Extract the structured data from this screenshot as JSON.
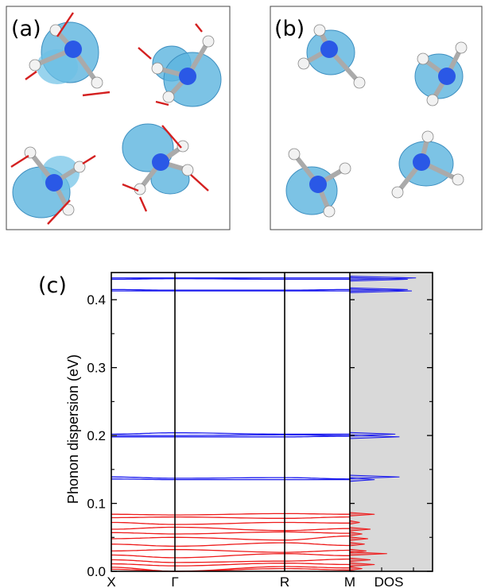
{
  "panels": {
    "a": {
      "label": "(a)"
    },
    "b": {
      "label": "(b)"
    },
    "c": {
      "label": "(c)"
    }
  },
  "colors": {
    "high_freq": "#1a1aee",
    "low_freq": "#ee1a1a",
    "dos_fill": "#d9d9d9",
    "orbital": "#5bb4de",
    "nitrogen": "#2a58e6",
    "hydrogen": "#f2f2f2",
    "arrow": "#d42020"
  },
  "chart_data": {
    "type": "line",
    "title": "",
    "xlabel": "",
    "ylabel": "Phonon dispersion (eV)",
    "ylim": [
      0,
      0.44
    ],
    "yticks": [
      "0.0",
      "0.1",
      "0.2",
      "0.3",
      "0.4"
    ],
    "x": [
      "X",
      "Γ",
      "R",
      "M"
    ],
    "dos_label": "DOS",
    "grid": false,
    "series": [
      {
        "group": "high",
        "values": [
          0.432,
          0.432,
          0.432,
          0.432
        ]
      },
      {
        "group": "high",
        "values": [
          0.43,
          0.431,
          0.43,
          0.43
        ]
      },
      {
        "group": "high",
        "values": [
          0.415,
          0.414,
          0.414,
          0.415
        ]
      },
      {
        "group": "high",
        "values": [
          0.413,
          0.413,
          0.413,
          0.413
        ]
      },
      {
        "group": "high",
        "values": [
          0.202,
          0.204,
          0.202,
          0.202
        ]
      },
      {
        "group": "high",
        "values": [
          0.2,
          0.2,
          0.201,
          0.2
        ]
      },
      {
        "group": "high",
        "values": [
          0.198,
          0.198,
          0.198,
          0.199
        ]
      },
      {
        "group": "high",
        "values": [
          0.139,
          0.137,
          0.138,
          0.136
        ]
      },
      {
        "group": "high",
        "values": [
          0.136,
          0.135,
          0.135,
          0.135
        ]
      },
      {
        "group": "low",
        "values": [
          0.084,
          0.083,
          0.085,
          0.084
        ]
      },
      {
        "group": "low",
        "values": [
          0.079,
          0.08,
          0.078,
          0.08
        ]
      },
      {
        "group": "low",
        "values": [
          0.072,
          0.069,
          0.072,
          0.071
        ]
      },
      {
        "group": "low",
        "values": [
          0.062,
          0.065,
          0.06,
          0.063
        ]
      },
      {
        "group": "low",
        "values": [
          0.057,
          0.055,
          0.058,
          0.056
        ]
      },
      {
        "group": "low",
        "values": [
          0.048,
          0.05,
          0.046,
          0.052
        ]
      },
      {
        "group": "low",
        "values": [
          0.04,
          0.037,
          0.042,
          0.038
        ]
      },
      {
        "group": "low",
        "values": [
          0.03,
          0.032,
          0.028,
          0.031
        ]
      },
      {
        "group": "low",
        "values": [
          0.024,
          0.02,
          0.026,
          0.023
        ]
      },
      {
        "group": "low",
        "values": [
          0.017,
          0.013,
          0.015,
          0.018
        ]
      },
      {
        "group": "low",
        "values": [
          0.011,
          0.008,
          0.012,
          0.01
        ]
      },
      {
        "group": "low",
        "values": [
          0.006,
          0.0,
          0.007,
          0.005
        ]
      },
      {
        "group": "low",
        "values": [
          0.003,
          0.0,
          0.004,
          0.002
        ]
      }
    ],
    "dos": {
      "high": [
        {
          "e": 0.432,
          "v": 0.8
        },
        {
          "e": 0.43,
          "v": 0.7
        },
        {
          "e": 0.415,
          "v": 0.7
        },
        {
          "e": 0.413,
          "v": 0.75
        },
        {
          "e": 0.202,
          "v": 0.55
        },
        {
          "e": 0.198,
          "v": 0.6
        },
        {
          "e": 0.139,
          "v": 0.6
        },
        {
          "e": 0.135,
          "v": 0.3
        }
      ],
      "low": [
        {
          "e": 0.084,
          "v": 0.3
        },
        {
          "e": 0.072,
          "v": 0.12
        },
        {
          "e": 0.062,
          "v": 0.25
        },
        {
          "e": 0.055,
          "v": 0.15
        },
        {
          "e": 0.048,
          "v": 0.22
        },
        {
          "e": 0.04,
          "v": 0.18
        },
        {
          "e": 0.03,
          "v": 0.2
        },
        {
          "e": 0.026,
          "v": 0.45
        },
        {
          "e": 0.017,
          "v": 0.25
        },
        {
          "e": 0.01,
          "v": 0.3
        },
        {
          "e": 0.004,
          "v": 0.15
        }
      ]
    }
  }
}
